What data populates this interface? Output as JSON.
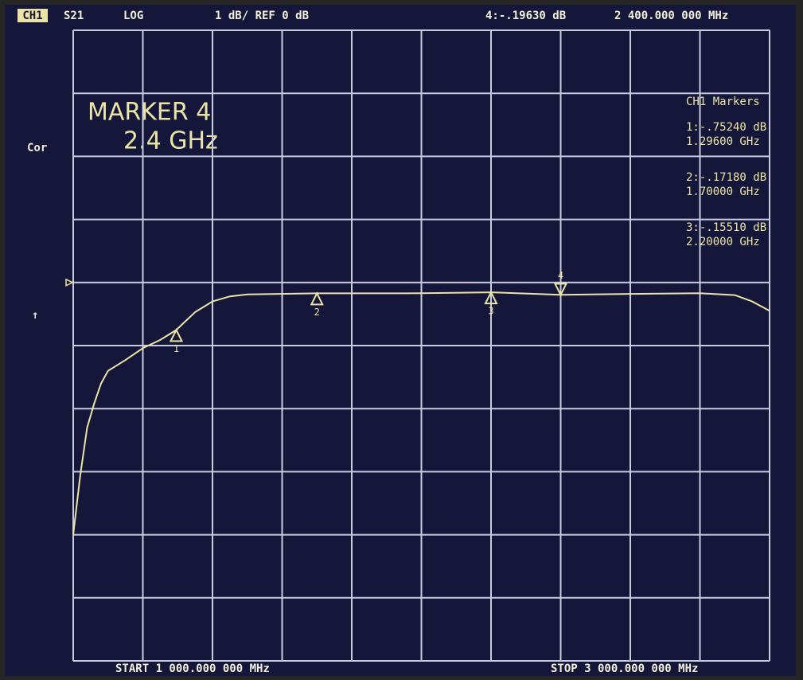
{
  "chart_data": {
    "type": "line",
    "channel": "CH1",
    "parameter": "S21",
    "format": "LOG",
    "scale": "1 dB/ REF 0 dB",
    "active_readout": "4:-.19630 dB",
    "active_frequency": "2 400.000 000 MHz",
    "marker_title": "MARKER 4",
    "marker_subtitle": "2.4 GHz",
    "correction": "Cor",
    "arrow": "↑",
    "markers_title": "CH1 Markers",
    "readouts": [
      {
        "value": "1:-.75240 dB",
        "frequency": "1.29600 GHz"
      },
      {
        "value": "2:-.17180 dB",
        "frequency": "1.70000 GHz"
      },
      {
        "value": "3:-.15510 dB",
        "frequency": "2.20000 GHz"
      }
    ],
    "start_label": "START 1 000.000 000 MHz",
    "stop_label": "STOP 3 000.000 000 MHz",
    "ref_level": 0,
    "xlim": [
      1000,
      3000
    ],
    "ylim": [
      -6,
      4
    ],
    "xticks": [
      1000,
      1200,
      1400,
      1600,
      1800,
      2000,
      2200,
      2400,
      2600,
      2800,
      3000
    ],
    "yticks": [
      -6,
      -5,
      -4,
      -3,
      -2,
      -1,
      0,
      1,
      2,
      3,
      4
    ],
    "grid": true,
    "color": "#ebe4a6",
    "x": [
      1000,
      1020,
      1040,
      1060,
      1080,
      1100,
      1150,
      1200,
      1250,
      1296,
      1350,
      1400,
      1450,
      1500,
      1700,
      2000,
      2200,
      2400,
      2600,
      2800,
      2900,
      2950,
      3000
    ],
    "values": [
      -4.0,
      -3.06,
      -2.3,
      -1.92,
      -1.6,
      -1.4,
      -1.23,
      -1.04,
      -0.91,
      -0.7524,
      -0.47,
      -0.3,
      -0.22,
      -0.19,
      -0.1718,
      -0.17,
      -0.1551,
      -0.1963,
      -0.18,
      -0.17,
      -0.2,
      -0.3,
      -0.45
    ],
    "markers": [
      {
        "label": "1",
        "x": 1296,
        "value": -0.7524
      },
      {
        "label": "2",
        "x": 1700,
        "value": -0.1718
      },
      {
        "label": "3",
        "x": 2200,
        "value": -0.1551
      },
      {
        "label": "4",
        "x": 2400,
        "value": -0.1963,
        "active": true
      }
    ]
  }
}
